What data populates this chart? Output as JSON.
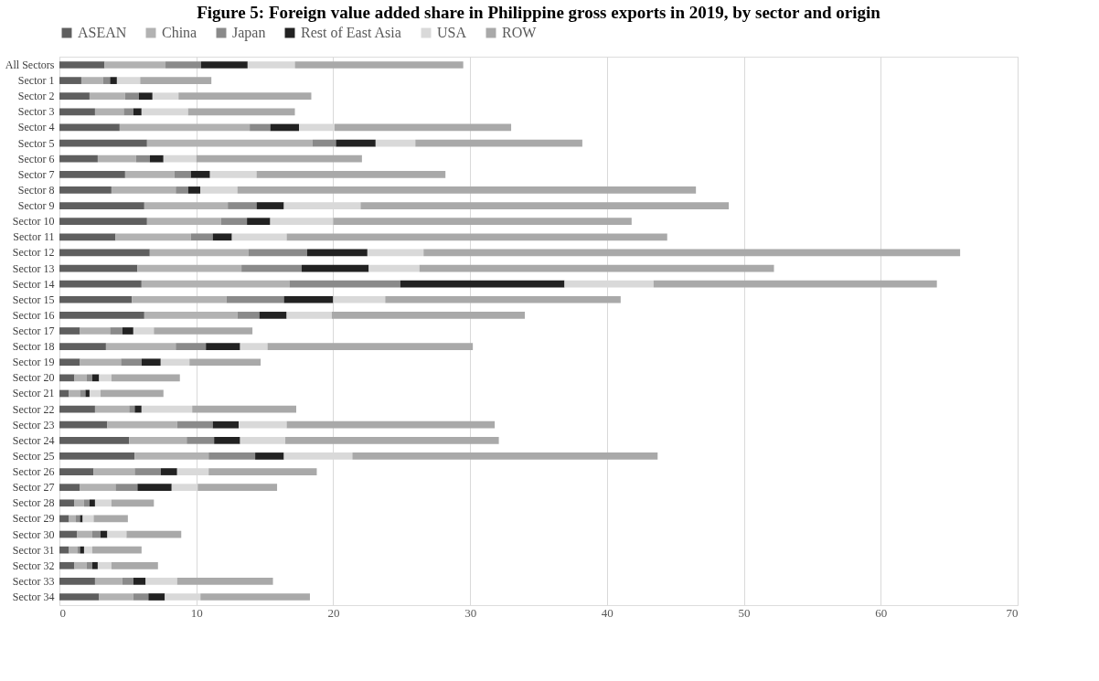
{
  "chart_data": {
    "type": "bar",
    "orientation": "horizontal",
    "stacked": true,
    "title": "Figure 5: Foreign value added share in Philippine gross exports in 2019, by sector and origin",
    "categories": [
      "All Sectors",
      "Sector 1",
      "Sector 2",
      "Sector 3",
      "Sector 4",
      "Sector 5",
      "Sector 6",
      "Sector 7",
      "Sector 8",
      "Sector 9",
      "Sector 10",
      "Sector 11",
      "Sector 12",
      "Sector 13",
      "Sector 14",
      "Sector 15",
      "Sector 16",
      "Sector 17",
      "Sector 18",
      "Sector 19",
      "Sector 20",
      "Sector 21",
      "Sector 22",
      "Sector 23",
      "Sector 24",
      "Sector 25",
      "Sector 26",
      "Sector 27",
      "Sector 28",
      "Sector 29",
      "Sector 30",
      "Sector 31",
      "Sector 32",
      "Sector 33",
      "Sector 34"
    ],
    "series": [
      {
        "name": "ASEAN",
        "color": "#5f5f5f",
        "values": [
          3.3,
          1.6,
          2.2,
          2.6,
          4.4,
          6.4,
          2.8,
          4.8,
          3.8,
          6.2,
          6.4,
          4.1,
          6.6,
          5.7,
          6.0,
          5.3,
          6.2,
          1.5,
          3.4,
          1.5,
          1.1,
          0.7,
          2.6,
          3.5,
          5.1,
          5.5,
          2.5,
          1.5,
          1.1,
          0.7,
          1.3,
          0.7,
          1.1,
          2.6,
          2.9
        ]
      },
      {
        "name": "China",
        "color": "#b2b2b2",
        "values": [
          4.45,
          1.6,
          2.6,
          2.1,
          9.5,
          12.1,
          2.8,
          3.6,
          4.7,
          6.1,
          5.4,
          5.5,
          7.2,
          7.6,
          10.8,
          6.9,
          6.8,
          2.2,
          5.1,
          3.0,
          0.9,
          0.8,
          2.5,
          5.1,
          4.2,
          5.4,
          3.0,
          2.6,
          0.7,
          0.5,
          1.1,
          0.6,
          0.9,
          2.0,
          2.5
        ]
      },
      {
        "name": "Japan",
        "color": "#8a8a8a",
        "values": [
          2.6,
          0.5,
          1.0,
          0.7,
          1.5,
          1.7,
          1.0,
          1.2,
          0.9,
          2.1,
          1.9,
          1.6,
          4.3,
          4.4,
          8.1,
          4.2,
          1.6,
          0.9,
          2.2,
          1.5,
          0.4,
          0.4,
          0.4,
          2.6,
          2.0,
          3.4,
          1.9,
          1.6,
          0.4,
          0.3,
          0.6,
          0.2,
          0.4,
          0.8,
          1.1
        ]
      },
      {
        "name": "Rest of East Asia",
        "color": "#222222",
        "values": [
          3.4,
          0.5,
          1.0,
          0.6,
          2.1,
          2.9,
          1.0,
          1.4,
          0.9,
          2.0,
          1.7,
          1.4,
          4.4,
          4.9,
          12.0,
          3.6,
          2.0,
          0.8,
          2.5,
          1.4,
          0.5,
          0.3,
          0.5,
          1.9,
          1.9,
          2.1,
          1.2,
          2.5,
          0.4,
          0.2,
          0.5,
          0.3,
          0.4,
          0.9,
          1.2
        ]
      },
      {
        "name": "USA",
        "color": "#d9d9d9",
        "values": [
          3.45,
          1.7,
          1.9,
          3.4,
          2.6,
          2.9,
          2.4,
          3.4,
          2.7,
          5.6,
          4.6,
          4.0,
          4.1,
          3.7,
          6.5,
          3.8,
          3.3,
          1.5,
          2.0,
          2.1,
          0.9,
          0.8,
          3.7,
          3.5,
          3.3,
          5.0,
          2.3,
          1.9,
          1.2,
          0.8,
          1.4,
          0.6,
          1.0,
          2.3,
          2.6
        ]
      },
      {
        "name": "ROW",
        "color": "#a9a9a9",
        "values": [
          12.3,
          5.2,
          9.7,
          7.8,
          12.9,
          12.2,
          12.1,
          13.8,
          33.5,
          26.9,
          21.8,
          27.8,
          39.2,
          25.9,
          20.7,
          17.2,
          14.1,
          7.2,
          15.0,
          5.2,
          5.0,
          4.6,
          7.6,
          15.2,
          15.6,
          22.3,
          7.9,
          5.8,
          3.1,
          2.5,
          4.0,
          3.6,
          3.4,
          7.0,
          8.0
        ]
      }
    ],
    "xlim": [
      0,
      70
    ],
    "xticks": [
      0,
      10,
      20,
      30,
      40,
      50,
      60,
      70
    ],
    "grid": "x",
    "legend": "top"
  }
}
